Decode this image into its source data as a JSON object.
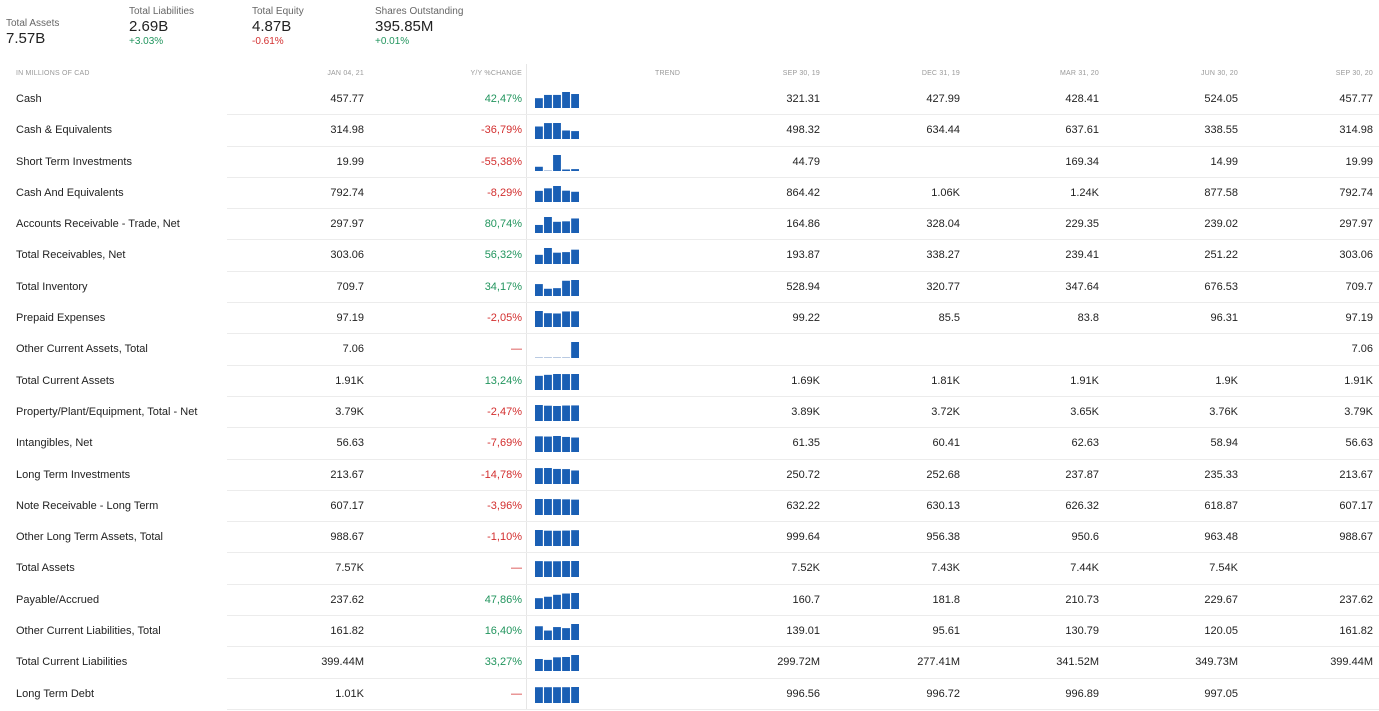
{
  "summary": {
    "total_assets": {
      "label": "Total Assets",
      "value": "7.57B"
    },
    "total_liabilities": {
      "label": "Total Liabilities",
      "value": "2.69B",
      "change": "+3.03%"
    },
    "total_equity": {
      "label": "Total Equity",
      "value": "4.87B",
      "change": "-0.61%"
    },
    "shares_outstanding": {
      "label": "Shares Outstanding",
      "value": "395.85M",
      "change": "+0.01%"
    }
  },
  "colors": {
    "positive": "#22955e",
    "negative": "#d32f2f",
    "spark": "#1a5fb4"
  },
  "headers": {
    "label": "IN MILLIONS OF CAD",
    "jan": "JAN 04, 21",
    "yy": "Y/Y %CHANGE",
    "trend": "TREND",
    "sep19": "SEP 30, 19",
    "dec19": "DEC 31, 19",
    "mar20": "MAR 31, 20",
    "jun20": "JUN 30, 20",
    "sep20": "SEP 30, 20"
  },
  "rows": [
    {
      "label": "Cash",
      "jan": "457.77",
      "yy": "42,47%",
      "yy_dir": "pos",
      "sep19": "321.31",
      "dec19": "427.99",
      "mar20": "428.41",
      "jun20": "524.05",
      "sep20": "457.77",
      "trend": [
        321.31,
        427.99,
        428.41,
        524.05,
        457.77
      ]
    },
    {
      "label": "Cash & Equivalents",
      "jan": "314.98",
      "yy": "-36,79%",
      "yy_dir": "neg",
      "sep19": "498.32",
      "dec19": "634.44",
      "mar20": "637.61",
      "jun20": "338.55",
      "sep20": "314.98",
      "trend": [
        498.32,
        634.44,
        637.61,
        338.55,
        314.98
      ]
    },
    {
      "label": "Short Term Investments",
      "jan": "19.99",
      "yy": "-55,38%",
      "yy_dir": "neg",
      "sep19": "44.79",
      "dec19": "",
      "mar20": "169.34",
      "jun20": "14.99",
      "sep20": "19.99",
      "trend": [
        44.79,
        0,
        169.34,
        14.99,
        19.99
      ]
    },
    {
      "label": "Cash And Equivalents",
      "jan": "792.74",
      "yy": "-8,29%",
      "yy_dir": "neg",
      "sep19": "864.42",
      "dec19": "1.06K",
      "mar20": "1.24K",
      "jun20": "877.58",
      "sep20": "792.74",
      "trend": [
        864.42,
        1060,
        1240,
        877.58,
        792.74
      ]
    },
    {
      "label": "Accounts Receivable - Trade, Net",
      "jan": "297.97",
      "yy": "80,74%",
      "yy_dir": "pos",
      "sep19": "164.86",
      "dec19": "328.04",
      "mar20": "229.35",
      "jun20": "239.02",
      "sep20": "297.97",
      "trend": [
        164.86,
        328.04,
        229.35,
        239.02,
        297.97
      ]
    },
    {
      "label": "Total Receivables, Net",
      "jan": "303.06",
      "yy": "56,32%",
      "yy_dir": "pos",
      "sep19": "193.87",
      "dec19": "338.27",
      "mar20": "239.41",
      "jun20": "251.22",
      "sep20": "303.06",
      "trend": [
        193.87,
        338.27,
        239.41,
        251.22,
        303.06
      ]
    },
    {
      "label": "Total Inventory",
      "jan": "709.7",
      "yy": "34,17%",
      "yy_dir": "pos",
      "sep19": "528.94",
      "dec19": "320.77",
      "mar20": "347.64",
      "jun20": "676.53",
      "sep20": "709.7",
      "trend": [
        528.94,
        320.77,
        347.64,
        676.53,
        709.7
      ]
    },
    {
      "label": "Prepaid Expenses",
      "jan": "97.19",
      "yy": "-2,05%",
      "yy_dir": "neg",
      "sep19": "99.22",
      "dec19": "85.5",
      "mar20": "83.8",
      "jun20": "96.31",
      "sep20": "97.19",
      "trend": [
        99.22,
        85.5,
        83.8,
        96.31,
        97.19
      ]
    },
    {
      "label": "Other Current Assets, Total",
      "jan": "7.06",
      "yy": "—",
      "yy_dir": "neg",
      "sep19": "",
      "dec19": "",
      "mar20": "",
      "jun20": "",
      "sep20": "7.06",
      "trend": [
        0,
        0,
        0,
        0,
        7.06
      ]
    },
    {
      "label": "Total Current Assets",
      "jan": "1.91K",
      "yy": "13,24%",
      "yy_dir": "pos",
      "sep19": "1.69K",
      "dec19": "1.81K",
      "mar20": "1.91K",
      "jun20": "1.9K",
      "sep20": "1.91K",
      "trend": [
        1690,
        1810,
        1910,
        1900,
        1910
      ]
    },
    {
      "label": "Property/Plant/Equipment, Total - Net",
      "jan": "3.79K",
      "yy": "-2,47%",
      "yy_dir": "neg",
      "sep19": "3.89K",
      "dec19": "3.72K",
      "mar20": "3.65K",
      "jun20": "3.76K",
      "sep20": "3.79K",
      "trend": [
        3890,
        3720,
        3650,
        3760,
        3790
      ]
    },
    {
      "label": "Intangibles, Net",
      "jan": "56.63",
      "yy": "-7,69%",
      "yy_dir": "neg",
      "sep19": "61.35",
      "dec19": "60.41",
      "mar20": "62.63",
      "jun20": "58.94",
      "sep20": "56.63",
      "trend": [
        61.35,
        60.41,
        62.63,
        58.94,
        56.63
      ]
    },
    {
      "label": "Long Term Investments",
      "jan": "213.67",
      "yy": "-14,78%",
      "yy_dir": "neg",
      "sep19": "250.72",
      "dec19": "252.68",
      "mar20": "237.87",
      "jun20": "235.33",
      "sep20": "213.67",
      "trend": [
        250.72,
        252.68,
        237.87,
        235.33,
        213.67
      ]
    },
    {
      "label": "Note Receivable - Long Term",
      "jan": "607.17",
      "yy": "-3,96%",
      "yy_dir": "neg",
      "sep19": "632.22",
      "dec19": "630.13",
      "mar20": "626.32",
      "jun20": "618.87",
      "sep20": "607.17",
      "trend": [
        632.22,
        630.13,
        626.32,
        618.87,
        607.17
      ]
    },
    {
      "label": "Other Long Term Assets, Total",
      "jan": "988.67",
      "yy": "-1,10%",
      "yy_dir": "neg",
      "sep19": "999.64",
      "dec19": "956.38",
      "mar20": "950.6",
      "jun20": "963.48",
      "sep20": "988.67",
      "trend": [
        999.64,
        956.38,
        950.6,
        963.48,
        988.67
      ]
    },
    {
      "label": "Total Assets",
      "jan": "7.57K",
      "yy": "—",
      "yy_dir": "neg",
      "sep19": "7.52K",
      "dec19": "7.43K",
      "mar20": "7.44K",
      "jun20": "7.54K",
      "sep20": "",
      "trend": [
        7520,
        7430,
        7440,
        7540,
        7570
      ]
    },
    {
      "label": "Payable/Accrued",
      "jan": "237.62",
      "yy": "47,86%",
      "yy_dir": "pos",
      "sep19": "160.7",
      "dec19": "181.8",
      "mar20": "210.73",
      "jun20": "229.67",
      "sep20": "237.62",
      "trend": [
        160.7,
        181.8,
        210.73,
        229.67,
        237.62
      ]
    },
    {
      "label": "Other Current Liabilities, Total",
      "jan": "161.82",
      "yy": "16,40%",
      "yy_dir": "pos",
      "sep19": "139.01",
      "dec19": "95.61",
      "mar20": "130.79",
      "jun20": "120.05",
      "sep20": "161.82",
      "trend": [
        139.01,
        95.61,
        130.79,
        120.05,
        161.82
      ]
    },
    {
      "label": "Total Current Liabilities",
      "jan": "399.44M",
      "yy": "33,27%",
      "yy_dir": "pos",
      "sep19": "299.72M",
      "dec19": "277.41M",
      "mar20": "341.52M",
      "jun20": "349.73M",
      "sep20": "399.44M",
      "trend": [
        299.72,
        277.41,
        341.52,
        349.73,
        399.44
      ]
    },
    {
      "label": "Long Term Debt",
      "jan": "1.01K",
      "yy": "—",
      "yy_dir": "neg",
      "sep19": "996.56",
      "dec19": "996.72",
      "mar20": "996.89",
      "jun20": "997.05",
      "sep20": "",
      "trend": [
        996.56,
        996.72,
        996.89,
        997.05,
        1010
      ]
    }
  ]
}
